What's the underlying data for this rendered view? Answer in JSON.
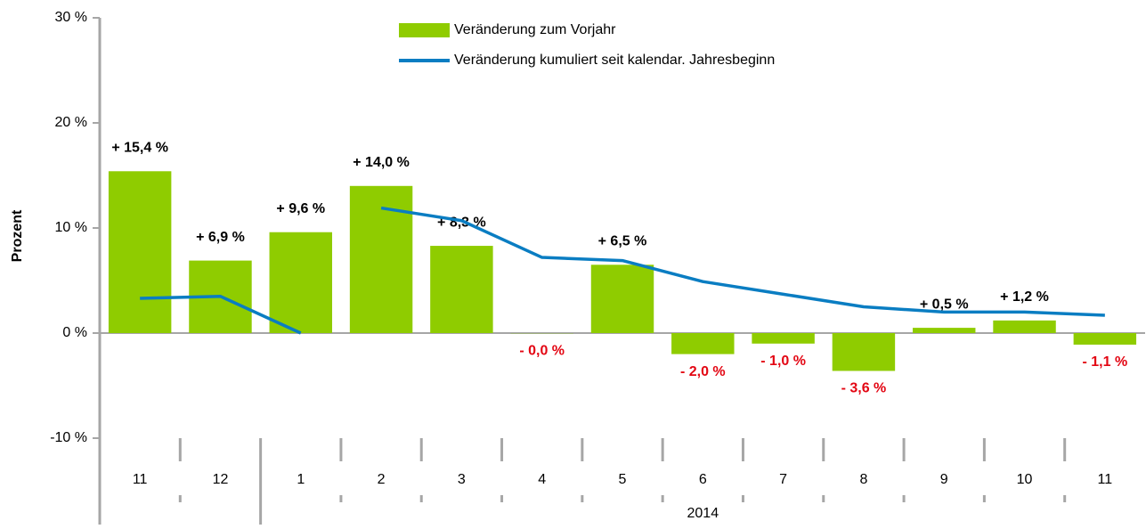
{
  "chart_data": {
    "type": "bar-line",
    "y_axis_label": "Prozent",
    "categories": [
      "11",
      "12",
      "1",
      "2",
      "3",
      "4",
      "5",
      "6",
      "7",
      "8",
      "9",
      "10",
      "11"
    ],
    "group_labels": [
      null,
      null,
      "2014",
      null,
      null,
      null,
      null,
      null,
      null,
      null,
      null,
      null,
      null
    ],
    "ylim": [
      -10,
      30
    ],
    "yticks": [
      {
        "value": -10,
        "label": "-10 %"
      },
      {
        "value": 0,
        "label": "0 %"
      },
      {
        "value": 10,
        "label": "10 %"
      },
      {
        "value": 20,
        "label": "20 %"
      },
      {
        "value": 30,
        "label": "30 %"
      }
    ],
    "legend": "top",
    "negative_label_color": "#e30613",
    "series": [
      {
        "name": "Veränderung zum Vorjahr",
        "type": "bar",
        "color": "#8fcc00",
        "values": [
          15.4,
          6.9,
          9.6,
          14.0,
          8.3,
          -0.02,
          6.5,
          -2.0,
          -1.0,
          -3.6,
          0.5,
          1.2,
          -1.1
        ],
        "value_labels": [
          "+ 15,4 %",
          "+ 6,9 %",
          "+ 9,6 %",
          "+ 14,0 %",
          "+ 8,3 %",
          "- 0,0 %",
          "+ 6,5 %",
          "- 2,0 %",
          "- 1,0 %",
          "- 3,6 %",
          "+ 0,5 %",
          "+ 1,2 %",
          "- 1,1 %"
        ]
      },
      {
        "name": "Veränderung kumuliert seit kalendar. Jahresbeginn",
        "type": "line",
        "color": "#0a7dc2",
        "break_after_index": 2,
        "values": [
          3.3,
          3.5,
          0.0,
          11.9,
          10.7,
          7.2,
          6.9,
          4.9,
          3.7,
          2.5,
          2.0,
          2.0,
          1.7
        ]
      }
    ]
  }
}
